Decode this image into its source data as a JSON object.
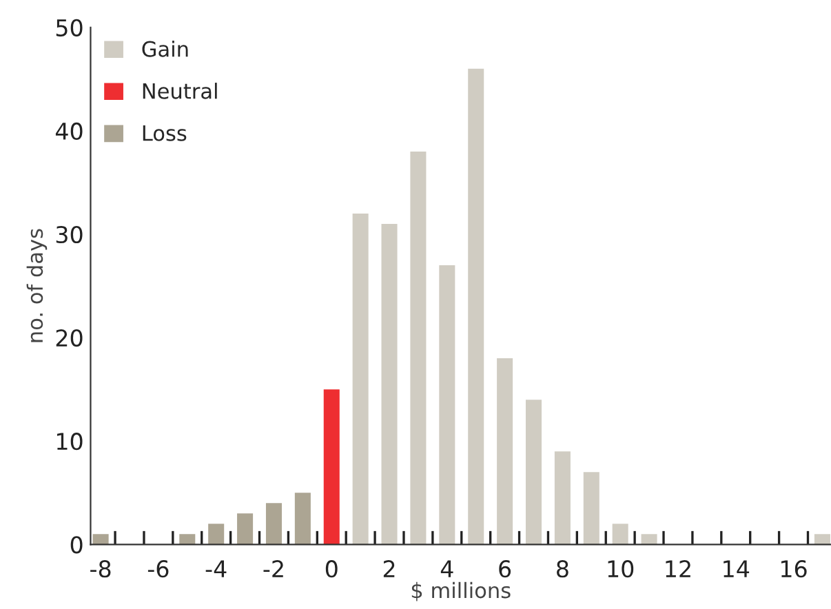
{
  "chart_data": {
    "type": "bar",
    "xlabel": "$ millions",
    "ylabel": "no. of days",
    "series": [
      {
        "name": "Gain",
        "color": "#d0ccc2",
        "x": [
          1,
          2,
          3,
          4,
          5,
          6,
          7,
          8,
          9,
          10,
          11,
          12,
          13,
          14,
          15,
          16,
          17
        ],
        "values": [
          32,
          31,
          38,
          27,
          46,
          18,
          14,
          9,
          7,
          2,
          1,
          0,
          0,
          0,
          0,
          0,
          1
        ]
      },
      {
        "name": "Neutral",
        "color": "#ee2e31",
        "x": [
          0
        ],
        "values": [
          15
        ]
      },
      {
        "name": "Loss",
        "color": "#aca593",
        "x": [
          -8,
          -7,
          -6,
          -5,
          -4,
          -3,
          -2,
          -1
        ],
        "values": [
          1,
          0,
          0,
          1,
          2,
          3,
          4,
          5
        ]
      }
    ],
    "xlim": [
      -8.35,
      17.3
    ],
    "ylim": [
      0,
      50
    ],
    "yticks": [
      0,
      10,
      20,
      30,
      40,
      50
    ],
    "xticks": [
      -8,
      -6,
      -4,
      -2,
      0,
      2,
      4,
      6,
      8,
      10,
      12,
      14,
      16,
      {
        "value": -7.5,
        "label": null
      },
      {
        "value": -6.5,
        "label": null
      },
      {
        "value": -5.5,
        "label": null
      },
      {
        "value": -4.5,
        "label": null
      },
      {
        "value": -3.5,
        "label": null
      },
      {
        "value": -2.5,
        "label": null
      },
      {
        "value": -1.5,
        "label": null
      },
      {
        "value": -0.5,
        "label": null
      },
      {
        "value": 0.5,
        "label": null
      },
      {
        "value": 1.5,
        "label": null
      },
      {
        "value": 2.5,
        "label": null
      },
      {
        "value": 3.5,
        "label": null
      },
      {
        "value": 4.5,
        "label": null
      },
      {
        "value": 5.5,
        "label": null
      },
      {
        "value": 6.5,
        "label": null
      },
      {
        "value": 7.5,
        "label": null
      },
      {
        "value": 8.5,
        "label": null
      },
      {
        "value": 9.5,
        "label": null
      },
      {
        "value": 10.5,
        "label": null
      },
      {
        "value": 11.5,
        "label": null
      },
      {
        "value": 12.5,
        "label": null
      },
      {
        "value": 13.5,
        "label": null
      },
      {
        "value": 14.5,
        "label": null
      },
      {
        "value": 15.5,
        "label": null
      },
      {
        "value": 16.5,
        "label": null
      }
    ],
    "grid": false,
    "legend": "top left"
  }
}
